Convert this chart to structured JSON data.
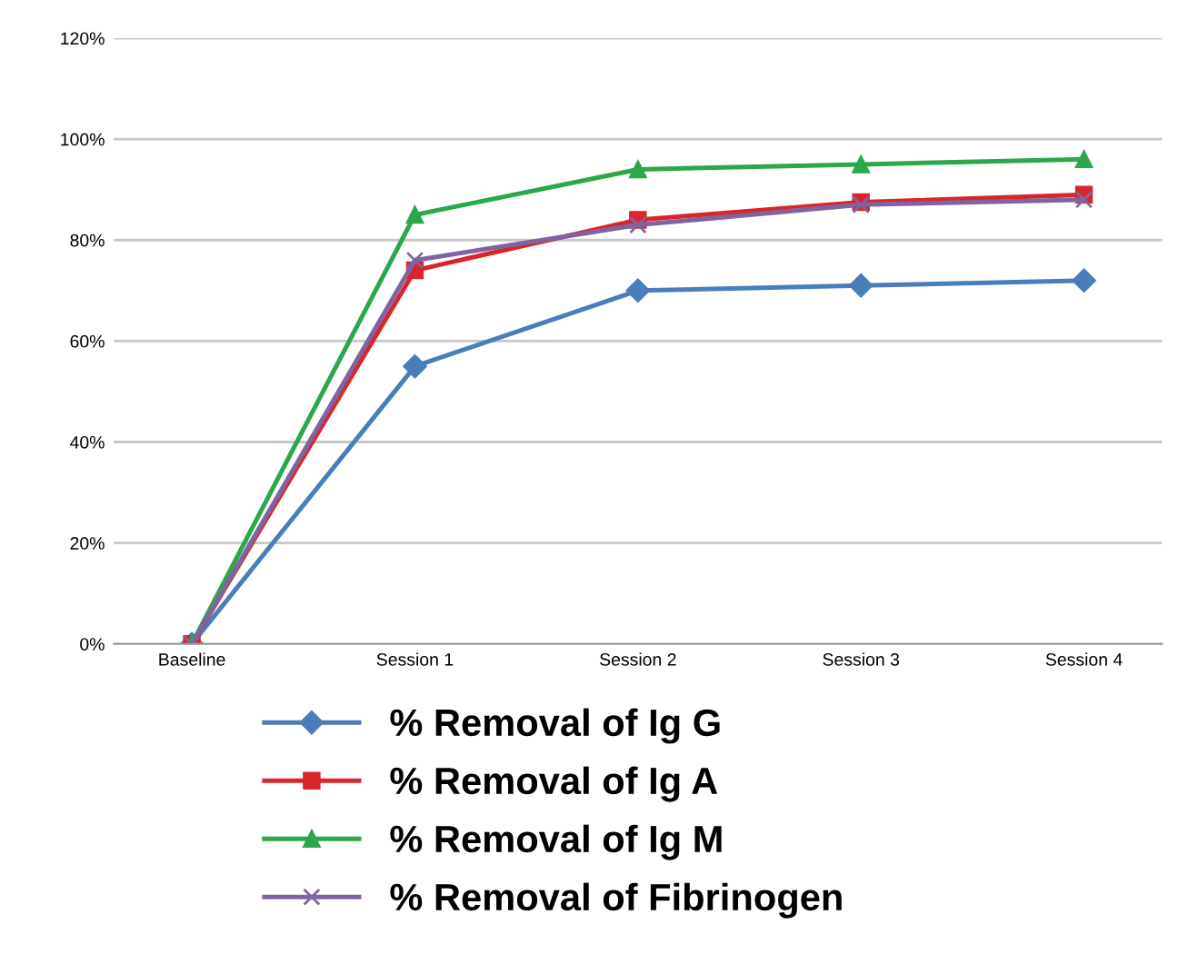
{
  "chart_data": {
    "type": "line",
    "categories": [
      "Baseline",
      "Session 1",
      "Session 2",
      "Session 3",
      "Session 4"
    ],
    "series": [
      {
        "name": "% Removal of Ig G",
        "color": "#4a7ebb",
        "marker": "diamond",
        "values": [
          0,
          55,
          70,
          71,
          72
        ]
      },
      {
        "name": "% Removal of Ig A",
        "color": "#d9262a",
        "marker": "square",
        "values": [
          0,
          74,
          84,
          87.5,
          89
        ]
      },
      {
        "name": "% Removal of Ig M",
        "color": "#2aa84a",
        "marker": "triangle",
        "values": [
          0,
          85,
          94,
          95,
          96
        ]
      },
      {
        "name": "% Removal of Fibrinogen",
        "color": "#8064a2",
        "marker": "cross",
        "values": [
          0,
          76,
          83,
          87,
          88
        ]
      }
    ],
    "ylim": [
      0,
      120
    ],
    "yticks": [
      {
        "value": 0,
        "label": "0%"
      },
      {
        "value": 20,
        "label": "20%"
      },
      {
        "value": 40,
        "label": "40%"
      },
      {
        "value": 60,
        "label": "60%"
      },
      {
        "value": 80,
        "label": "80%"
      },
      {
        "value": 100,
        "label": "100%"
      },
      {
        "value": 120,
        "label": "120%"
      }
    ],
    "grid": "y",
    "legend": "bottom",
    "line_style": "solid"
  }
}
